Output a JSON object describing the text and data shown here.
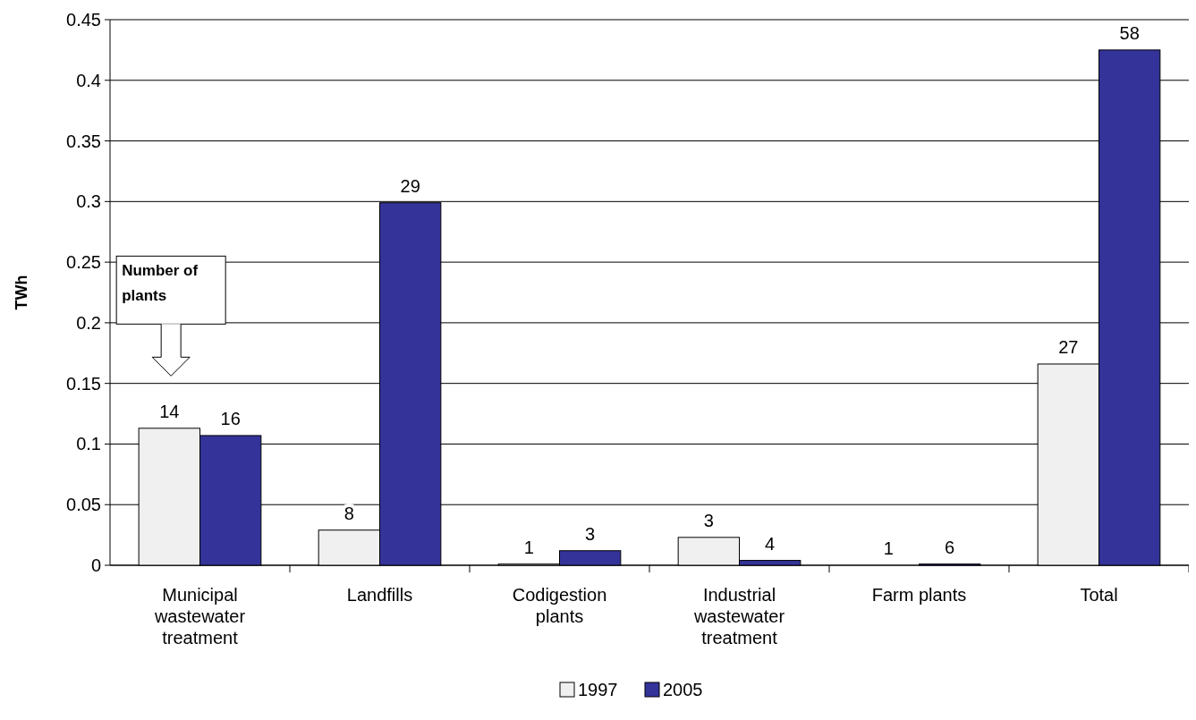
{
  "chart_data": {
    "type": "bar",
    "ylabel": "TWh",
    "categories": [
      "Municipal wastewater treatment",
      "Landfills",
      "Codigestion plants",
      "Industrial wastewater treatment",
      "Farm plants",
      "Total"
    ],
    "series": [
      {
        "name": "1997",
        "color": "#f0f0f0",
        "values": [
          0.113,
          0.029,
          0.001,
          0.023,
          0,
          0.166
        ]
      },
      {
        "name": "2005",
        "color": "#333399",
        "values": [
          0.107,
          0.299,
          0.012,
          0.004,
          0.001,
          0.425
        ]
      }
    ],
    "ylim": [
      0,
      0.45
    ],
    "yticks": [
      0,
      0.05,
      0.1,
      0.15,
      0.2,
      0.25,
      0.3,
      0.35,
      0.4,
      0.45
    ],
    "grid": "y",
    "legend": "bottom",
    "annotations": [
      "Number of plants",
      {
        "text": "14",
        "x": "Municipal wastewater treatment",
        "y": 0.113
      },
      {
        "text": "16",
        "x": "Municipal wastewater treatment",
        "y": 0.107
      },
      {
        "text": "8",
        "x": "Landfills",
        "y": 0.029
      },
      {
        "text": "29",
        "x": "Landfills",
        "y": 0.299
      },
      {
        "text": "1",
        "x": "Codigestion plants",
        "y": 0.001
      },
      {
        "text": "3",
        "x": "Codigestion plants",
        "y": 0.012
      },
      {
        "text": "3",
        "x": "Industrial wastewater treatment",
        "y": 0.023
      },
      {
        "text": "4",
        "x": "Industrial wastewater treatment",
        "y": 0.004
      },
      {
        "text": "1",
        "x": "Farm plants",
        "y": 0
      },
      {
        "text": "6",
        "x": "Farm plants",
        "y": 0.001
      },
      {
        "text": "27",
        "x": "Total",
        "y": 0.166
      },
      {
        "text": "58",
        "x": "Total",
        "y": 0.425
      }
    ]
  }
}
